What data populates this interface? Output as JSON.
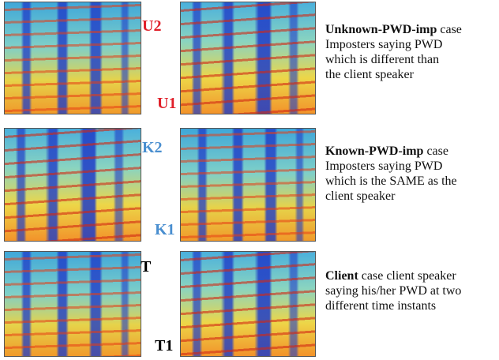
{
  "rows": [
    {
      "top_label": "U2",
      "bottom_label": "U1",
      "title": "Unknown-PWD-imp",
      "title_rest": "case",
      "lines": [
        "Imposters saying PWD",
        "which is different than",
        "the client speaker"
      ]
    },
    {
      "top_label": "K2",
      "bottom_label": "K1",
      "title": "Known-PWD-imp",
      "title_rest": "case",
      "lines": [
        "Imposters saying PWD",
        "which is the SAME as the",
        "client speaker"
      ]
    },
    {
      "top_label": "T",
      "bottom_label": "T1",
      "title": "Client",
      "title_rest": "case client speaker",
      "lines": [
        "saying his/her PWD at two",
        "different time instants"
      ]
    }
  ]
}
